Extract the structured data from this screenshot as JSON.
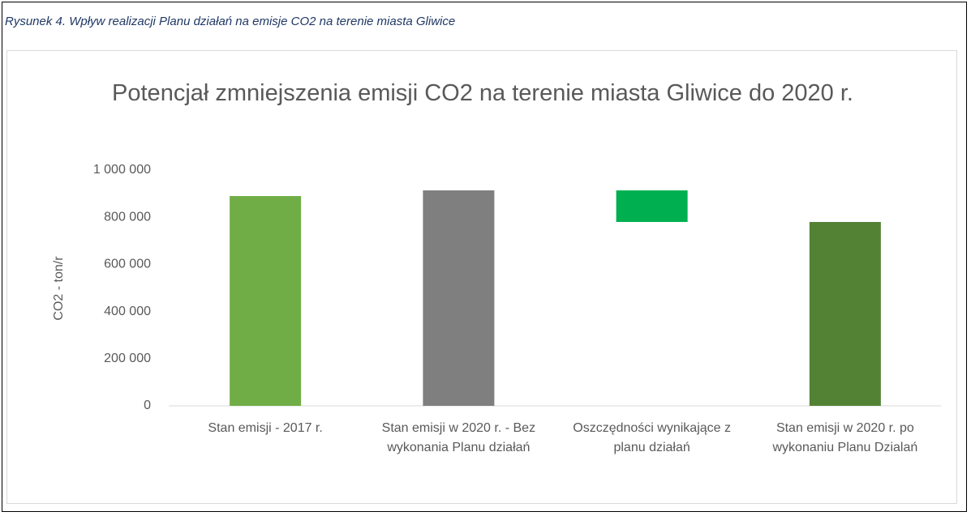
{
  "caption": "Rysunek 4. Wpływ realizacji Planu działań na emisje CO2 na terenie miasta Gliwice",
  "chart_data": {
    "type": "waterfall",
    "title": "Potencjał zmniejszenia emisji CO2 na terenie miasta Gliwice do 2020 r.",
    "y_label": "CO2 - ton/r",
    "categories": [
      "Stan emisji - 2017 r.",
      "Stan emisji w 2020 r. - Bez wykonania Planu działań",
      "Oszczędności wynikające z planu działań",
      "Stan emisji w 2020 r. po wykonaniu Planu Dzialań"
    ],
    "values": [
      890000,
      914000,
      -134000,
      780000
    ],
    "measures": [
      "absolute",
      "absolute",
      "relative",
      "absolute"
    ],
    "colors": [
      "#70ad47",
      "#7f7f7f",
      "#00b050",
      "#548235"
    ],
    "ylim": [
      0,
      1000000
    ],
    "yticks": [
      0,
      {
        "value": 200000,
        "label": "200 000"
      },
      {
        "value": 400000,
        "label": "400 000"
      },
      {
        "value": 600000,
        "label": "600 000"
      },
      {
        "value": 800000,
        "label": "800 000"
      },
      {
        "value": 1000000,
        "label": "1 000 000"
      }
    ],
    "grid": false
  }
}
